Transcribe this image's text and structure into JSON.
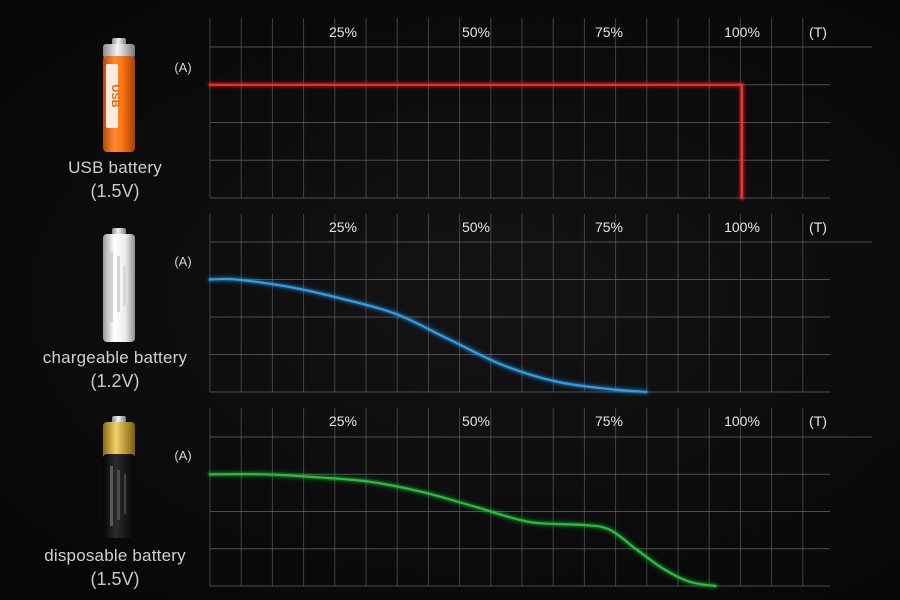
{
  "colors": {
    "background": "#0b0b0c",
    "grid": "#5a5a5a",
    "usb_line": "#ff2a2a",
    "chargeable_line": "#2f9ee8",
    "disposable_line": "#26c13a"
  },
  "panels": [
    {
      "battery_name": "USB battery",
      "voltage": "(1.5V)",
      "battery_icon": "orange-usb-aa-battery-icon",
      "battery_print": "USB"
    },
    {
      "battery_name": "chargeable battery",
      "voltage": "(1.2V)",
      "battery_icon": "white-rechargeable-aa-battery-icon"
    },
    {
      "battery_name": "disposable battery",
      "voltage": "(1.5V)",
      "battery_icon": "gold-black-alkaline-aa-battery-icon"
    }
  ],
  "chart_data": [
    {
      "type": "line",
      "title": "",
      "xlabel": "(T)",
      "ylabel": "(A)",
      "x_tick_labels": [
        "25%",
        "50%",
        "75%",
        "100%"
      ],
      "xlim": [
        0,
        125
      ],
      "ylim": [
        0,
        1
      ],
      "grid": true,
      "series": [
        {
          "x": [
            0,
            20,
            40,
            60,
            80,
            100,
            100,
            100
          ],
          "y": [
            0.75,
            0.75,
            0.75,
            0.75,
            0.75,
            0.75,
            0.3,
            0.0
          ],
          "color": "#ff2a2a"
        }
      ]
    },
    {
      "type": "line",
      "title": "",
      "xlabel": "(T)",
      "ylabel": "(A)",
      "x_tick_labels": [
        "25%",
        "50%",
        "75%",
        "100%"
      ],
      "xlim": [
        0,
        125
      ],
      "ylim": [
        0,
        1
      ],
      "grid": true,
      "series": [
        {
          "x": [
            0,
            5,
            15,
            25,
            35,
            45,
            55,
            65,
            75,
            82
          ],
          "y": [
            0.75,
            0.75,
            0.7,
            0.62,
            0.52,
            0.35,
            0.18,
            0.07,
            0.02,
            0.0
          ],
          "color": "#2f9ee8"
        }
      ]
    },
    {
      "type": "line",
      "title": "",
      "xlabel": "(T)",
      "ylabel": "(A)",
      "x_tick_labels": [
        "25%",
        "50%",
        "75%",
        "100%"
      ],
      "xlim": [
        0,
        125
      ],
      "ylim": [
        0,
        1
      ],
      "grid": true,
      "series": [
        {
          "x": [
            0,
            10,
            20,
            30,
            40,
            50,
            60,
            70,
            75,
            80,
            85,
            90,
            95
          ],
          "y": [
            0.75,
            0.75,
            0.73,
            0.7,
            0.63,
            0.53,
            0.43,
            0.41,
            0.38,
            0.25,
            0.12,
            0.03,
            0.0
          ],
          "color": "#26c13a"
        }
      ]
    }
  ]
}
